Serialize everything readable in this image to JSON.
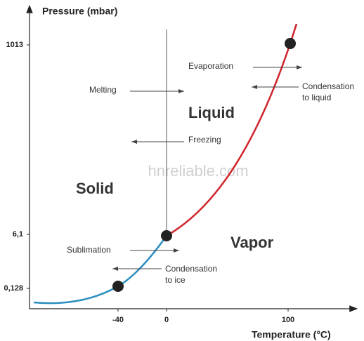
{
  "axes": {
    "y_label": "Pressure (mbar)",
    "x_label": "Temperature (°C)",
    "y_ticks": [
      "1013",
      "6,1",
      "0,128"
    ],
    "x_ticks": [
      "-40",
      "0",
      "100"
    ]
  },
  "regions": {
    "liquid": "Liquid",
    "solid": "Solid",
    "vapor": "Vapor"
  },
  "transitions": {
    "evaporation": "Evaporation",
    "condensation_liquid": [
      "Condensation",
      "to liquid"
    ],
    "melting": "Melting",
    "freezing": "Freezing",
    "sublimation": "Sublimation",
    "condensation_ice": [
      "Condensation",
      "to ice"
    ]
  },
  "watermark": "hnreliable.com"
}
